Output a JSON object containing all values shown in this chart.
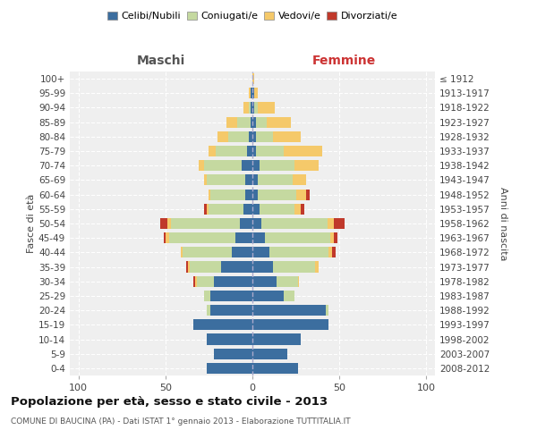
{
  "age_groups": [
    "0-4",
    "5-9",
    "10-14",
    "15-19",
    "20-24",
    "25-29",
    "30-34",
    "35-39",
    "40-44",
    "45-49",
    "50-54",
    "55-59",
    "60-64",
    "65-69",
    "70-74",
    "75-79",
    "80-84",
    "85-89",
    "90-94",
    "95-99",
    "100+"
  ],
  "birth_years": [
    "2008-2012",
    "2003-2007",
    "1998-2002",
    "1993-1997",
    "1988-1992",
    "1983-1987",
    "1978-1982",
    "1973-1977",
    "1968-1972",
    "1963-1967",
    "1958-1962",
    "1953-1957",
    "1948-1952",
    "1943-1947",
    "1938-1942",
    "1933-1937",
    "1928-1932",
    "1923-1927",
    "1918-1922",
    "1913-1917",
    "≤ 1912"
  ],
  "colors": {
    "celibe": "#3c6e9f",
    "coniugato": "#c5d9a0",
    "vedovo": "#f5c96a",
    "divorziato": "#c0392b"
  },
  "maschi": {
    "celibe": [
      26,
      22,
      26,
      34,
      24,
      24,
      22,
      18,
      12,
      10,
      7,
      5,
      4,
      4,
      6,
      3,
      2,
      1,
      1,
      1,
      0
    ],
    "coniugato": [
      0,
      0,
      0,
      0,
      2,
      4,
      10,
      18,
      28,
      38,
      40,
      20,
      20,
      22,
      22,
      18,
      12,
      8,
      1,
      0,
      0
    ],
    "vedovo": [
      0,
      0,
      0,
      0,
      0,
      0,
      1,
      1,
      1,
      2,
      2,
      1,
      1,
      2,
      3,
      4,
      6,
      6,
      3,
      1,
      0
    ],
    "divorziato": [
      0,
      0,
      0,
      0,
      0,
      0,
      1,
      1,
      0,
      1,
      4,
      2,
      0,
      0,
      0,
      0,
      0,
      0,
      0,
      0,
      0
    ]
  },
  "femmine": {
    "nubile": [
      26,
      20,
      28,
      44,
      42,
      18,
      14,
      12,
      10,
      7,
      5,
      4,
      3,
      3,
      4,
      2,
      2,
      2,
      1,
      1,
      0
    ],
    "coniugata": [
      0,
      0,
      0,
      0,
      2,
      6,
      12,
      24,
      34,
      38,
      38,
      20,
      22,
      20,
      20,
      16,
      10,
      6,
      2,
      0,
      0
    ],
    "vedova": [
      0,
      0,
      0,
      0,
      0,
      0,
      1,
      2,
      2,
      2,
      4,
      4,
      6,
      8,
      14,
      22,
      16,
      14,
      10,
      2,
      1
    ],
    "divorziata": [
      0,
      0,
      0,
      0,
      0,
      0,
      0,
      0,
      2,
      2,
      6,
      2,
      2,
      0,
      0,
      0,
      0,
      0,
      0,
      0,
      0
    ]
  },
  "xlim": [
    -105,
    105
  ],
  "xticks": [
    -100,
    -50,
    0,
    50,
    100
  ],
  "xticklabels": [
    "100",
    "50",
    "0",
    "50",
    "100"
  ],
  "title": "Popolazione per età, sesso e stato civile - 2013",
  "subtitle": "COMUNE DI BAUCINA (PA) - Dati ISTAT 1° gennaio 2013 - Elaborazione TUTTITALIA.IT",
  "ylabel_left": "Fasce di età",
  "ylabel_right": "Anni di nascita",
  "header_maschi": "Maschi",
  "header_femmine": "Femmine",
  "legend_labels": [
    "Celibi/Nubili",
    "Coniugati/e",
    "Vedovi/e",
    "Divorziati/e"
  ],
  "bg_color": "#ffffff",
  "plot_bg": "#efefef",
  "bar_height": 0.75
}
